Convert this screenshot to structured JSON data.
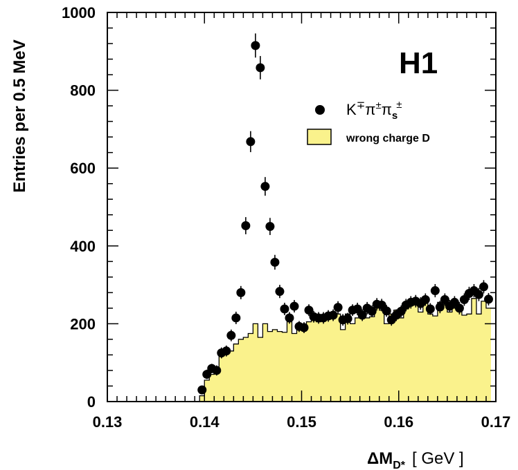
{
  "chart_data": {
    "type": "scatter",
    "brand": "H1",
    "xlabel": "ΔM",
    "xlabel_sub": "D*",
    "xlabel_unit": "[ GeV ]",
    "ylabel": "Entries per 0.5 MeV",
    "xlim": [
      0.13,
      0.17
    ],
    "ylim": [
      0,
      1000
    ],
    "x_ticks": [
      "0.13",
      "0.14",
      "0.15",
      "0.16",
      "0.17"
    ],
    "y_ticks": [
      "0",
      "200",
      "400",
      "600",
      "800",
      "1000"
    ],
    "legend": {
      "placement": "top-right",
      "points_label": "K",
      "points_label_sup1": "∓",
      "points_label_pi1": "π",
      "points_label_sup2": "±",
      "points_label_pi2": "π",
      "points_label_sub": "s",
      "points_label_sup3": "±",
      "hist_label": "wrong charge D"
    },
    "colors": {
      "histogram_fill": "#faf28c",
      "points": "#000000"
    },
    "series": [
      {
        "name": "K∓π±πs±",
        "kind": "points",
        "x": [
          0.13975,
          0.14025,
          0.14075,
          0.14125,
          0.14175,
          0.14225,
          0.14275,
          0.14325,
          0.14375,
          0.14425,
          0.14475,
          0.14525,
          0.14575,
          0.14625,
          0.14675,
          0.14725,
          0.14775,
          0.14825,
          0.14875,
          0.14925,
          0.14975,
          0.15025,
          0.15075,
          0.15125,
          0.15175,
          0.15225,
          0.15275,
          0.15325,
          0.15375,
          0.15425,
          0.15475,
          0.15525,
          0.15575,
          0.15625,
          0.15675,
          0.15725,
          0.15775,
          0.15825,
          0.15875,
          0.15925,
          0.15975,
          0.16025,
          0.16075,
          0.16125,
          0.16175,
          0.16225,
          0.16275,
          0.16325,
          0.16375,
          0.16425,
          0.16475,
          0.16525,
          0.16575,
          0.16625,
          0.16675,
          0.16725,
          0.16775,
          0.16825,
          0.16875,
          0.16925
        ],
        "y": [
          30,
          70,
          85,
          80,
          125,
          130,
          170,
          215,
          280,
          452,
          668,
          915,
          858,
          553,
          450,
          358,
          283,
          238,
          215,
          245,
          193,
          190,
          235,
          218,
          215,
          215,
          220,
          222,
          242,
          210,
          213,
          235,
          238,
          222,
          240,
          232,
          250,
          248,
          233,
          210,
          222,
          232,
          248,
          255,
          258,
          252,
          262,
          238,
          285,
          243,
          262,
          245,
          255,
          240,
          262,
          278,
          285,
          275,
          295,
          263
        ],
        "err": [
          10,
          12,
          12,
          13,
          14,
          14,
          15,
          16,
          17,
          22,
          27,
          31,
          30,
          24,
          22,
          19,
          17,
          16,
          15,
          16,
          14,
          14,
          15,
          15,
          15,
          15,
          15,
          15,
          16,
          15,
          15,
          15,
          16,
          15,
          16,
          15,
          16,
          16,
          15,
          15,
          15,
          15,
          16,
          16,
          16,
          16,
          16,
          15,
          17,
          16,
          16,
          16,
          16,
          16,
          16,
          17,
          17,
          17,
          17,
          16
        ]
      },
      {
        "name": "wrong charge D",
        "kind": "histogram",
        "x_edges_start": 0.1395,
        "bin_width": 0.0005,
        "values": [
          15,
          55,
          70,
          85,
          118,
          125,
          130,
          148,
          160,
          165,
          175,
          200,
          165,
          200,
          180,
          185,
          180,
          178,
          205,
          175,
          185,
          195,
          205,
          210,
          205,
          215,
          215,
          222,
          225,
          185,
          225,
          200,
          215,
          225,
          215,
          218,
          245,
          235,
          200,
          225,
          235,
          215,
          238,
          250,
          250,
          230,
          260,
          225,
          220,
          255,
          250,
          230,
          240,
          245,
          222,
          225,
          265,
          225,
          258,
          240
        ]
      }
    ]
  }
}
